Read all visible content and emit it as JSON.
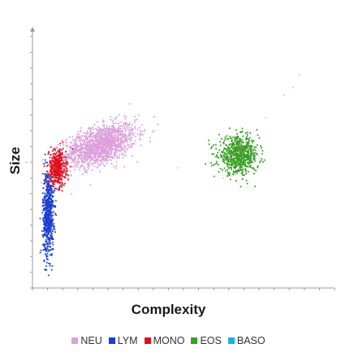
{
  "chart_data": {
    "type": "scatter",
    "xlabel": "Complexity",
    "ylabel": "Size",
    "xlim": [
      0,
      100
    ],
    "ylim": [
      0,
      100
    ],
    "legend_position": "bottom",
    "series": [
      {
        "name": "NEU",
        "color": "#dda0dd",
        "center": [
          22,
          57
        ],
        "spread": [
          6,
          3.8
        ],
        "points": 1500
      },
      {
        "name": "LYM",
        "color": "#1a3fd1",
        "center": [
          5,
          30
        ],
        "spread": [
          0.9,
          8.5
        ],
        "points": 650
      },
      {
        "name": "MONO",
        "color": "#e0101f",
        "center": [
          8,
          48
        ],
        "spread": [
          1.4,
          3.5
        ],
        "points": 450
      },
      {
        "name": "EOS",
        "color": "#3a9d24",
        "center": [
          68,
          53
        ],
        "spread": [
          3.3,
          3.6
        ],
        "points": 700
      },
      {
        "name": "BASO",
        "color": "#1ab2dd",
        "center": [
          0,
          0
        ],
        "spread": [
          0,
          0
        ],
        "points": 0
      }
    ]
  }
}
